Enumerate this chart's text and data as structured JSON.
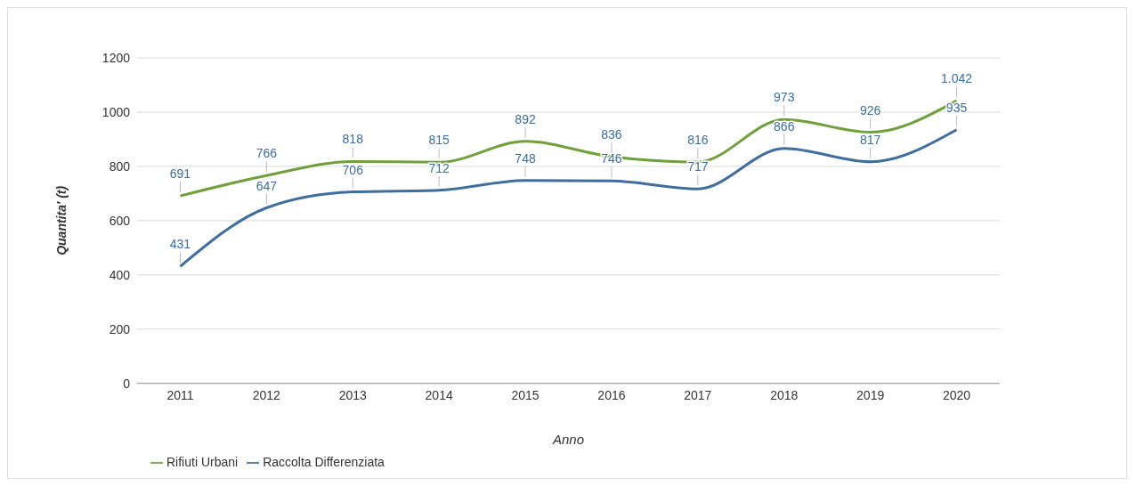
{
  "chart_data": {
    "type": "line",
    "xlabel": "Anno",
    "ylabel": "Quantita' (t)",
    "categories": [
      "2011",
      "2012",
      "2013",
      "2014",
      "2015",
      "2016",
      "2017",
      "2018",
      "2019",
      "2020"
    ],
    "series": [
      {
        "name": "Rifiuti Urbani",
        "color": "#70a03c",
        "values": [
          691,
          766,
          818,
          815,
          892,
          836,
          816,
          973,
          926,
          1042
        ],
        "value_labels": [
          "691",
          "766",
          "818",
          "815",
          "892",
          "836",
          "816",
          "973",
          "926",
          "1.042"
        ]
      },
      {
        "name": "Raccolta Differenziata",
        "color": "#3f6e9e",
        "values": [
          431,
          647,
          706,
          712,
          748,
          746,
          717,
          866,
          817,
          935
        ],
        "value_labels": [
          "431",
          "647",
          "706",
          "712",
          "748",
          "746",
          "717",
          "866",
          "817",
          "935"
        ]
      }
    ],
    "ylim": [
      0,
      1200
    ],
    "yticks": [
      0,
      200,
      400,
      600,
      800,
      1000,
      1200
    ],
    "grid": "y",
    "legend": "bottom left",
    "marker": "none",
    "line_style": "solid"
  }
}
